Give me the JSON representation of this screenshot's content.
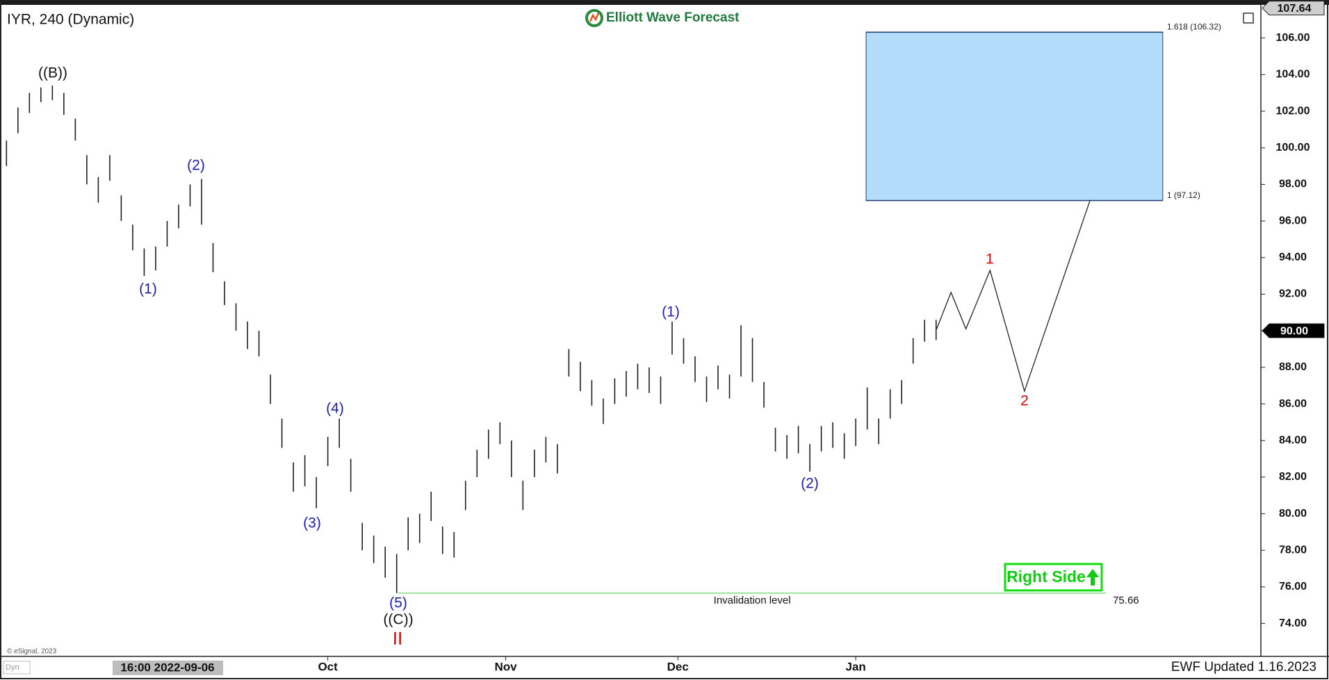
{
  "chart_data": {
    "type": "range_bar",
    "title": "IYR, 240 (Dynamic)",
    "logo": "Elliott Wave Forecast",
    "footer": "EWF Updated 1.16.2023",
    "copyright": "© eSignal, 2023",
    "corner_label": "Dyn",
    "cursor_label": "16:00 2022-09-06",
    "badge": "Right Side",
    "color": "#1e1e1e",
    "xlim": [
      -26.4,
      192.6
    ],
    "ylim": [
      72.2,
      107.7
    ],
    "xticks": [
      {
        "value": 30,
        "label": "Oct"
      },
      {
        "value": 61,
        "label": "Nov"
      },
      {
        "value": 91,
        "label": "Dec"
      },
      {
        "value": 122,
        "label": "Jan"
      }
    ],
    "yticks": [
      {
        "value": 74,
        "label": "74.00"
      },
      {
        "value": 76,
        "label": "76.00"
      },
      {
        "value": 78,
        "label": "78.00"
      },
      {
        "value": 80,
        "label": "80.00"
      },
      {
        "value": 82,
        "label": "82.00"
      },
      {
        "value": 84,
        "label": "84.00"
      },
      {
        "value": 86,
        "label": "86.00"
      },
      {
        "value": 88,
        "label": "88.00"
      },
      {
        "value": 90,
        "label": "90.00"
      },
      {
        "value": 92,
        "label": "92.00"
      },
      {
        "value": 94,
        "label": "94.00"
      },
      {
        "value": 96,
        "label": "96.00"
      },
      {
        "value": 98,
        "label": "98.00"
      },
      {
        "value": 100,
        "label": "100.00"
      },
      {
        "value": 102,
        "label": "102.00"
      },
      {
        "value": 104,
        "label": "104.00"
      },
      {
        "value": 106,
        "label": "106.00"
      }
    ],
    "price_labels": [
      107.64,
      {
        "value": 90,
        "label": "90.00"
      }
    ],
    "x": [
      -26,
      -24,
      -22,
      -20,
      -18,
      -16,
      -14,
      -12,
      -10,
      -8,
      -6,
      -4,
      -2,
      0,
      2,
      4,
      6,
      8,
      10,
      12,
      14,
      16,
      18,
      20,
      22,
      24,
      26,
      28,
      30,
      32,
      34,
      36,
      38,
      40,
      42,
      44,
      46,
      48,
      50,
      52,
      54,
      56,
      58,
      60,
      62,
      64,
      66,
      68,
      70,
      72,
      74,
      76,
      78,
      80,
      82,
      84,
      86,
      88,
      90,
      92,
      94,
      96,
      98,
      100,
      102,
      104,
      106,
      108,
      110,
      112,
      114,
      116,
      118,
      120,
      122,
      124,
      126,
      128,
      130,
      132,
      134,
      136
    ],
    "high": [
      100.4,
      102.2,
      103.0,
      103.3,
      103.4,
      103.0,
      101.6,
      99.6,
      98.4,
      99.6,
      97.4,
      95.8,
      94.5,
      94.6,
      96.0,
      96.9,
      98.0,
      98.3,
      94.8,
      92.7,
      91.5,
      90.5,
      90.0,
      87.6,
      85.2,
      82.8,
      83.2,
      82.0,
      84.2,
      85.2,
      83.0,
      79.5,
      78.8,
      78.2,
      77.8,
      79.8,
      80.0,
      81.2,
      79.3,
      79.0,
      81.8,
      83.5,
      84.6,
      85.0,
      84.0,
      81.8,
      83.5,
      84.2,
      83.8,
      89.0,
      88.3,
      87.3,
      86.3,
      87.4,
      87.8,
      88.2,
      88.0,
      87.5,
      90.5,
      89.6,
      88.6,
      87.5,
      88.1,
      87.6,
      90.3,
      89.6,
      87.2,
      84.7,
      84.3,
      84.8,
      83.8,
      84.8,
      85.0,
      84.4,
      85.2,
      86.9,
      85.2,
      86.8,
      87.3,
      89.6,
      90.6,
      90.6
    ],
    "low": [
      99.0,
      100.8,
      101.9,
      102.5,
      102.6,
      101.8,
      100.4,
      98.0,
      97.0,
      98.2,
      96.0,
      94.4,
      93.0,
      93.3,
      94.6,
      95.6,
      96.8,
      95.8,
      93.2,
      91.4,
      90.0,
      89.0,
      88.6,
      86.0,
      83.6,
      81.2,
      81.5,
      80.3,
      82.6,
      83.6,
      81.2,
      78.0,
      77.3,
      76.5,
      75.66,
      78.0,
      78.4,
      79.6,
      77.8,
      77.6,
      80.2,
      82.0,
      83.0,
      83.8,
      82.0,
      80.2,
      82.0,
      82.8,
      82.2,
      87.5,
      86.7,
      85.9,
      84.9,
      86.0,
      86.4,
      86.8,
      86.6,
      86.0,
      88.7,
      88.2,
      87.2,
      86.1,
      86.8,
      86.3,
      87.5,
      87.2,
      85.8,
      83.4,
      83.0,
      83.3,
      82.3,
      83.4,
      83.6,
      83.0,
      83.7,
      84.6,
      83.8,
      85.2,
      86.0,
      88.2,
      89.4,
      89.5
    ],
    "projection": {
      "x": [
        136.1,
        138.6,
        141.2,
        145.4,
        151.4,
        162.8
      ],
      "y": [
        90.1,
        92.1,
        90.1,
        93.3,
        86.7,
        97.1
      ],
      "color": "#222222"
    },
    "target_zone": {
      "x": [
        123.8,
        175.5
      ],
      "levels": [
        {
          "value": 97.12,
          "label": "1 (97.12)"
        },
        {
          "value": 106.32,
          "label": "1.618 (106.32)"
        }
      ],
      "color": "#b3dcfa",
      "edge": "#1f3a73"
    },
    "invalidation": {
      "value": 75.66,
      "text": "Invalidation level",
      "x": [
        42.3,
        165.6
      ],
      "color": "#7fdf7f"
    },
    "wave_labels": [
      {
        "text": "((B))",
        "color": "#111111"
      },
      {
        "text": "(2)",
        "color": "#1c1cb4"
      },
      {
        "text": "(1)",
        "color": "#1c1cb4"
      },
      {
        "text": "(4)",
        "color": "#1c1cb4"
      },
      {
        "text": "(3)",
        "color": "#1c1cb4"
      },
      {
        "text": "(5)",
        "color": "#1c1cb4"
      },
      {
        "text": "((C))",
        "color": "#111111"
      },
      {
        "text": "II",
        "color": "#dd0000"
      },
      {
        "text": "(1)",
        "color": "#1c1cb4"
      },
      {
        "text": "(2)",
        "color": "#1c1cb4"
      },
      {
        "text": "1",
        "color": "#dd0000"
      },
      {
        "text": "2",
        "color": "#dd0000"
      }
    ]
  }
}
